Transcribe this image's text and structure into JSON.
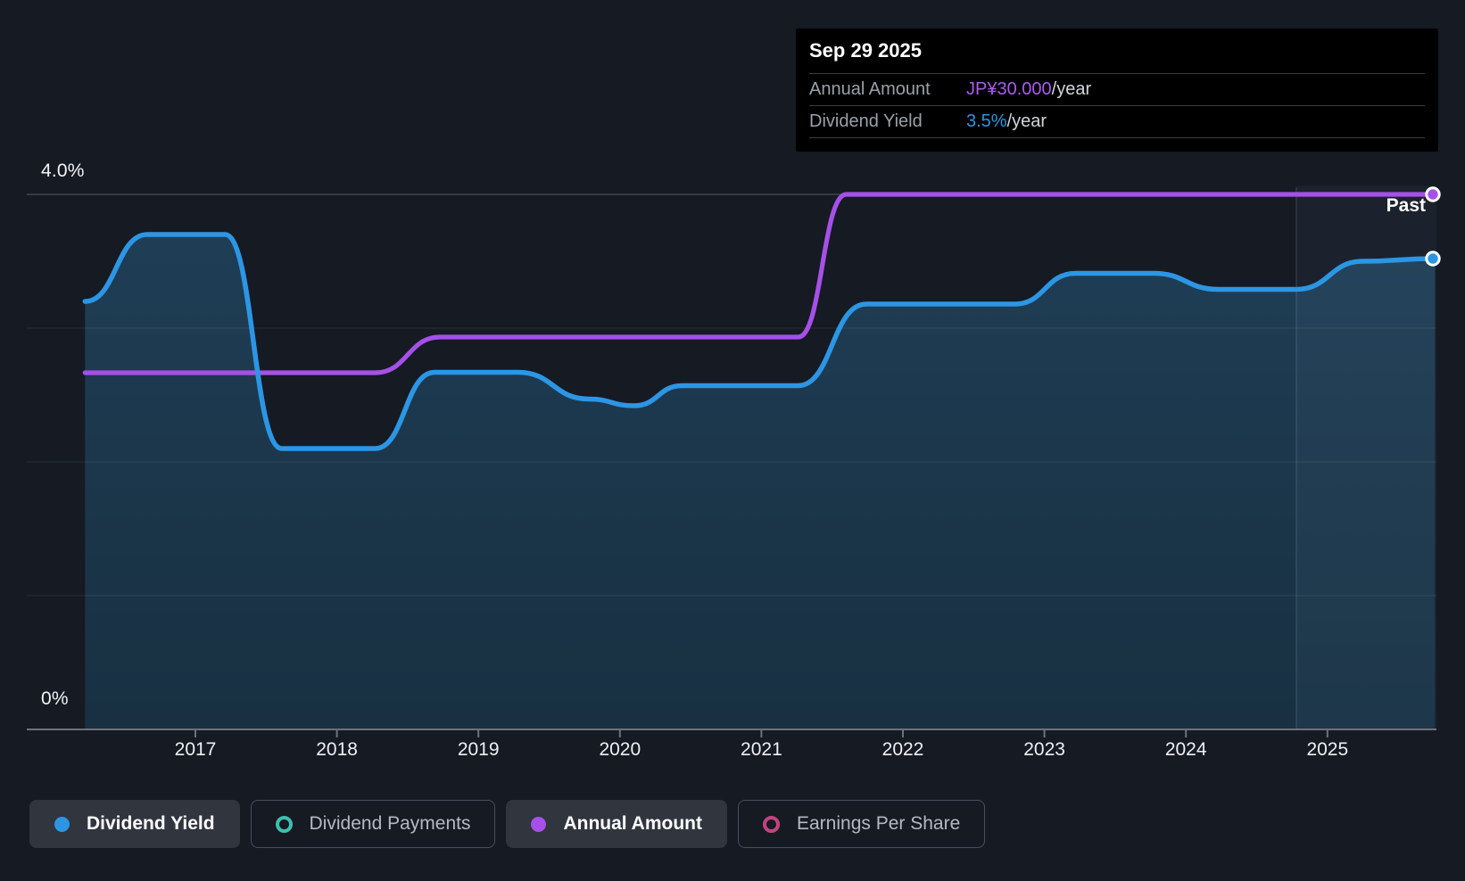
{
  "tooltip": {
    "date": "Sep 29 2025",
    "rows": [
      {
        "label": "Annual Amount",
        "value": "JP¥30.000",
        "suffix": "/year",
        "color": "#a95cec"
      },
      {
        "label": "Dividend Yield",
        "value": "3.5%",
        "suffix": "/year",
        "color": "#2d96e4"
      }
    ]
  },
  "axis": {
    "y_top_label": "4.0%",
    "y_bottom_label": "0%",
    "years": [
      "2017",
      "2018",
      "2019",
      "2020",
      "2021",
      "2022",
      "2023",
      "2024",
      "2025"
    ]
  },
  "past_label": "Past",
  "legend": [
    {
      "label": "Dividend Yield",
      "marker": "filled",
      "color": "#2c96e4",
      "active": true
    },
    {
      "label": "Dividend Payments",
      "marker": "open",
      "color": "#3fbfae",
      "active": false
    },
    {
      "label": "Annual Amount",
      "marker": "filled",
      "color": "#a650e8",
      "active": true
    },
    {
      "label": "Earnings Per Share",
      "marker": "open",
      "color": "#c2447f",
      "active": false
    }
  ],
  "chart_data": {
    "type": "line",
    "title": "Dividend yield and annual dividend amount over time",
    "x_axis": {
      "unit": "year",
      "ticks": [
        2017,
        2018,
        2019,
        2020,
        2021,
        2022,
        2023,
        2024,
        2025
      ],
      "range": [
        2015.8,
        2025.97
      ]
    },
    "y_axis": {
      "unit": "%",
      "range": [
        0,
        4.27
      ],
      "gridline_values": [
        1,
        2,
        3,
        4
      ],
      "labeled": {
        "4.0": "4.0%",
        "0": "0%"
      },
      "grid": true
    },
    "legend_position": "bottom",
    "highlight_band_start_year": 2024.78,
    "series": [
      {
        "name": "Dividend Yield",
        "unit": "%",
        "color": "#2c96e4",
        "area_fill": true,
        "end_marker": true,
        "points": [
          [
            2016.22,
            3.2
          ],
          [
            2016.66,
            3.7
          ],
          [
            2017.21,
            3.7
          ],
          [
            2017.61,
            2.1
          ],
          [
            2018.27,
            2.1
          ],
          [
            2018.69,
            2.67
          ],
          [
            2019.28,
            2.67
          ],
          [
            2019.78,
            2.47
          ],
          [
            2020.1,
            2.42
          ],
          [
            2020.44,
            2.57
          ],
          [
            2021.26,
            2.57
          ],
          [
            2021.74,
            3.18
          ],
          [
            2022.79,
            3.18
          ],
          [
            2023.22,
            3.41
          ],
          [
            2023.77,
            3.41
          ],
          [
            2024.23,
            3.29
          ],
          [
            2024.78,
            3.29
          ],
          [
            2025.25,
            3.5
          ],
          [
            2025.76,
            3.52
          ]
        ]
      },
      {
        "name": "Annual Amount",
        "unit": "JP¥/year",
        "color": "#a650e8",
        "area_fill": false,
        "end_marker": true,
        "points": [
          [
            2016.22,
            20
          ],
          [
            2018.27,
            20
          ],
          [
            2018.73,
            22
          ],
          [
            2021.26,
            22
          ],
          [
            2021.6,
            30
          ],
          [
            2025.76,
            30
          ]
        ]
      }
    ]
  }
}
